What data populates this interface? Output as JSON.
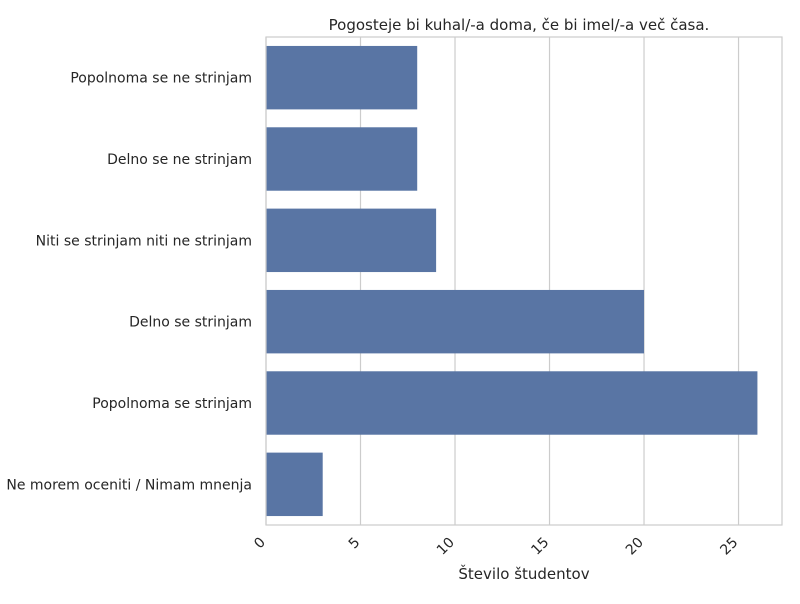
{
  "chart_data": {
    "type": "bar",
    "orientation": "horizontal",
    "title": "Pogosteje bi kuhal/-a doma, če bi imel/-a več časa.",
    "xlabel": "Število študentov",
    "ylabel": "",
    "categories": [
      "Popolnoma se ne strinjam",
      "Delno se ne strinjam",
      "Niti se strinjam niti ne strinjam",
      "Delno se strinjam",
      "Popolnoma se strinjam",
      "Ne morem oceniti / Nimam mnenja"
    ],
    "values": [
      8,
      8,
      9,
      20,
      26,
      3
    ],
    "xlim": [
      0,
      27.3
    ],
    "xticks": [
      0,
      5,
      10,
      15,
      20,
      25
    ],
    "xtick_labels": [
      "0",
      "5",
      "10",
      "15",
      "20",
      "25"
    ],
    "grid": "vertical",
    "bar_color": "#5975a4"
  }
}
